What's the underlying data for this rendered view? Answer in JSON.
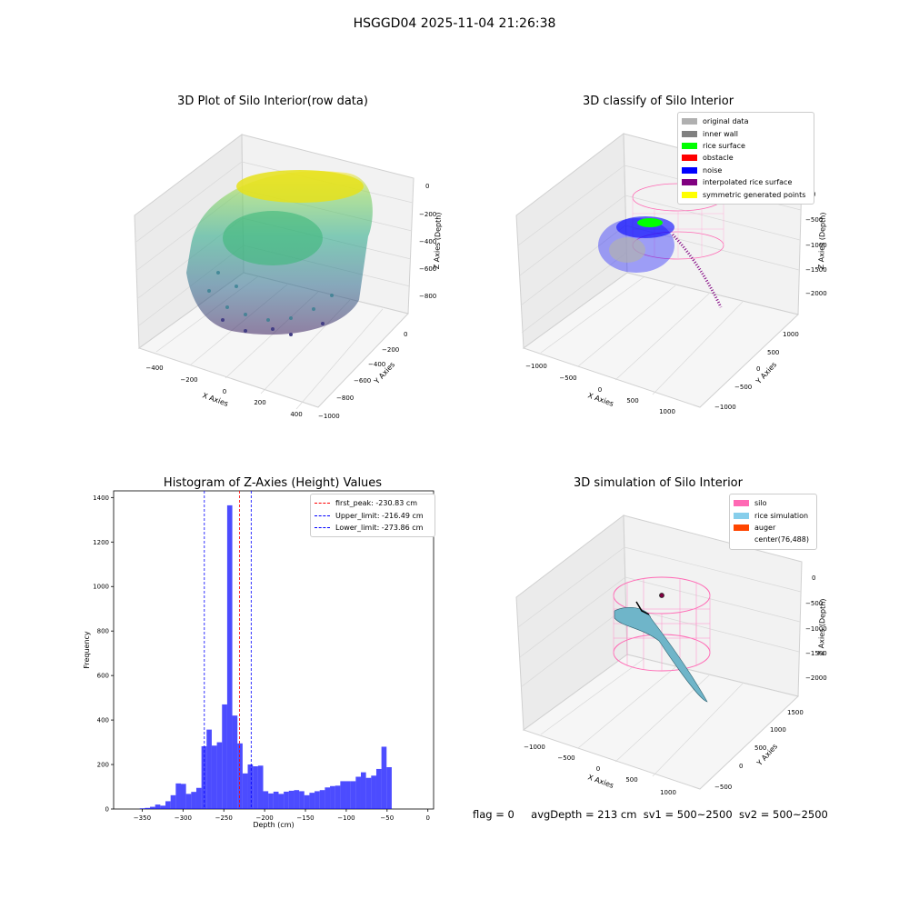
{
  "figure_title": "HSGGD04 2025-11-04 21:26:38",
  "footer": {
    "flag": "flag = 0",
    "avg_depth": "avgDepth = 213 cm",
    "sv1": "sv1 = 500~2500",
    "sv2": "sv2 = 500~2500"
  },
  "chart_data": [
    {
      "type": "scatter",
      "title": "3D Plot of Silo Interior(row data)",
      "xlabel": "X Axies",
      "ylabel": "Y Axies",
      "zlabel": "Z Axies (Depth)",
      "x_ticks": [
        "−400",
        "−200",
        "0",
        "200",
        "400"
      ],
      "y_ticks": [
        "−1000",
        "−800",
        "−600",
        "−400",
        "−200",
        "0"
      ],
      "z_ticks": [
        "0",
        "−200",
        "−400",
        "−600",
        "−800"
      ],
      "colormap": "viridis"
    },
    {
      "type": "scatter",
      "title": "3D classify of Silo Interior",
      "xlabel": "X Axies",
      "ylabel": "Y Axies",
      "zlabel": "Z Axies (Depth)",
      "x_ticks": [
        "−1000",
        "−500",
        "0",
        "500",
        "1000"
      ],
      "y_ticks": [
        "−1000",
        "−500",
        "0",
        "500",
        "1000"
      ],
      "z_ticks": [
        "0",
        "−500",
        "−1000",
        "−1500",
        "−2000"
      ],
      "legend": [
        {
          "label": "original data",
          "color": "#b0b0b0"
        },
        {
          "label": "inner wall",
          "color": "#808080"
        },
        {
          "label": "rice surface",
          "color": "#00ff00"
        },
        {
          "label": "obstacle",
          "color": "#ff0000"
        },
        {
          "label": "noise",
          "color": "#0000ff"
        },
        {
          "label": "interpolated rice surface",
          "color": "#800080"
        },
        {
          "label": "symmetric generated points",
          "color": "#ffff00"
        }
      ]
    },
    {
      "type": "bar",
      "subtype": "histogram",
      "title": "Histogram of Z-Axies (Height) Values",
      "xlabel": "Depth (cm)",
      "ylabel": "Frequency",
      "xlim": [
        -385,
        7
      ],
      "ylim": [
        0,
        1430
      ],
      "x_ticks": [
        -350,
        -300,
        -250,
        -200,
        -150,
        -100,
        -50,
        0
      ],
      "y_ticks": [
        0,
        200,
        400,
        600,
        800,
        1000,
        1200,
        1400
      ],
      "bar_color": "#0000ff",
      "bin_width": 6.3,
      "bins_start": [
        -353,
        -346.7,
        -340.4,
        -334.1,
        -327.8,
        -321.5,
        -315.2,
        -308.9,
        -302.6,
        -296.3,
        -290,
        -283.7,
        -277.4,
        -271.1,
        -264.8,
        -258.5,
        -252.2,
        -245.9,
        -239.6,
        -233.3,
        -227,
        -220.7,
        -214.4,
        -208.1,
        -201.8,
        -195.5,
        -189.2,
        -182.9,
        -176.6,
        -170.3,
        -164,
        -157.7,
        -151.4,
        -145.1,
        -138.8,
        -132.5,
        -126.2,
        -119.9,
        -113.6,
        -107.3,
        -101,
        -94.7,
        -88.4,
        -82.1,
        -75.8,
        -69.5,
        -63.2,
        -56.9,
        -50.6,
        -44.3,
        -38,
        -31.7,
        -25.4,
        -19.1,
        -12.8
      ],
      "values": [
        3,
        5,
        10,
        20,
        15,
        35,
        62,
        115,
        113,
        68,
        77,
        95,
        282,
        357,
        285,
        300,
        470,
        1365,
        420,
        295,
        160,
        200,
        192,
        195,
        80,
        70,
        78,
        68,
        78,
        82,
        85,
        80,
        62,
        73,
        80,
        85,
        97,
        103,
        105,
        125,
        125,
        125,
        145,
        165,
        140,
        150,
        180,
        280,
        188,
        0,
        0,
        0,
        0,
        0,
        0
      ],
      "lines": [
        {
          "label": "first_peak: -230.83 cm",
          "x": -230.83,
          "color": "#ff0000"
        },
        {
          "label": "Upper_limit: -216.49 cm",
          "x": -216.49,
          "color": "#0000ff"
        },
        {
          "label": "Lower_limit: -273.86 cm",
          "x": -273.86,
          "color": "#0000ff"
        }
      ]
    },
    {
      "type": "scatter",
      "title": "3D simulation of Silo Interior",
      "xlabel": "X Axies",
      "ylabel": "Y Axies",
      "zlabel": "Z Axies (Depth)",
      "x_ticks": [
        "−1000",
        "−500",
        "0",
        "500",
        "1000"
      ],
      "y_ticks": [
        "−500",
        "0",
        "500",
        "1000",
        "1500"
      ],
      "z_ticks": [
        "0",
        "−500",
        "−1000",
        "−1500",
        "−2000"
      ],
      "legend": [
        {
          "label": "silo",
          "color": "#ff69b4"
        },
        {
          "label": "rice simulation",
          "color": "#87ceeb"
        },
        {
          "label": "auger",
          "color": "#ff4500"
        },
        {
          "label": "center(76,488)",
          "color": "#ffffff"
        }
      ]
    }
  ]
}
